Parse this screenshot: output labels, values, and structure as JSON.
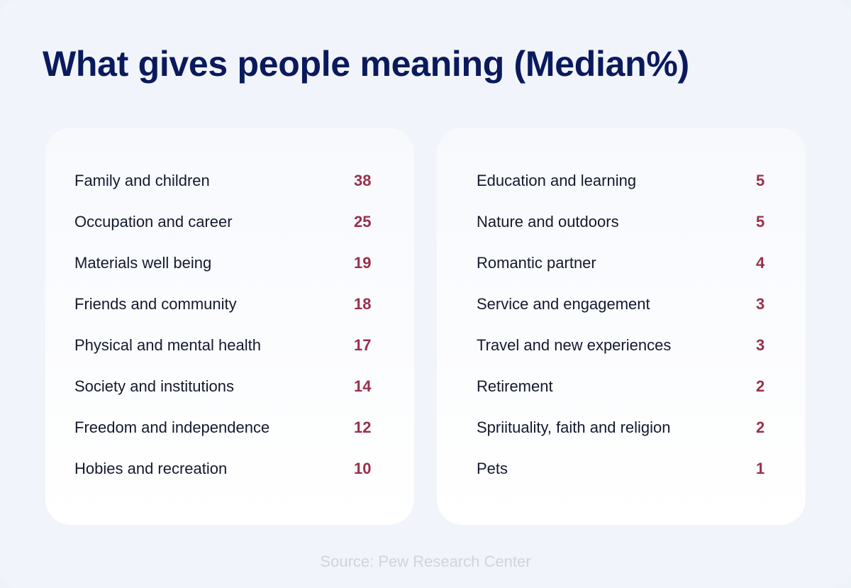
{
  "chart_data": {
    "type": "table",
    "title": "What gives people meaning (Median%)",
    "source": "Source: Pew Research Center",
    "columns": [
      {
        "rows": [
          {
            "label": "Family and children",
            "value": 38
          },
          {
            "label": "Occupation and career",
            "value": 25
          },
          {
            "label": "Materials well being",
            "value": 19
          },
          {
            "label": "Friends and community",
            "value": 18
          },
          {
            "label": "Physical and mental health",
            "value": 17
          },
          {
            "label": "Society and institutions",
            "value": 14
          },
          {
            "label": "Freedom and independence",
            "value": 12
          },
          {
            "label": "Hobies and recreation",
            "value": 10
          }
        ]
      },
      {
        "rows": [
          {
            "label": "Education and learning",
            "value": 5
          },
          {
            "label": "Nature and outdoors",
            "value": 5
          },
          {
            "label": "Romantic partner",
            "value": 4
          },
          {
            "label": "Service and engagement",
            "value": 3
          },
          {
            "label": "Travel and new experiences",
            "value": 3
          },
          {
            "label": "Retirement",
            "value": 2
          },
          {
            "label": "Spriituality, faith and religion",
            "value": 2
          },
          {
            "label": "Pets",
            "value": 1
          }
        ]
      }
    ],
    "colors": {
      "title": "#0a1a5c",
      "value": "#9a2f4a",
      "label": "#141a2e",
      "source": "#cfd4df",
      "background": "#f1f4fa",
      "panel": "#ffffff"
    }
  }
}
